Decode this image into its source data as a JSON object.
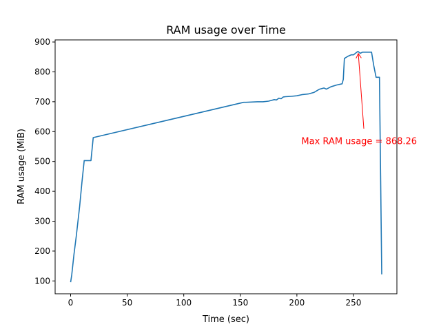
{
  "chart_data": {
    "type": "line",
    "title": "RAM usage over Time",
    "xlabel": "Time (sec)",
    "ylabel": "RAM usage (MiB)",
    "xlim": [
      -13.7,
      288.4
    ],
    "ylim": [
      57,
      907
    ],
    "xticks": [
      0,
      50,
      100,
      150,
      200,
      250
    ],
    "yticks": [
      100,
      200,
      300,
      400,
      500,
      600,
      700,
      800,
      900
    ],
    "grid": false,
    "legend": "none",
    "series": [
      {
        "color": "#1f77b4",
        "x": [
          0,
          1,
          3,
          5,
          8,
          10,
          12,
          15,
          18,
          20,
          153,
          155,
          160,
          165,
          170,
          175,
          180,
          182,
          184,
          186,
          188,
          190,
          195,
          200,
          205,
          210,
          215,
          220,
          224,
          226,
          228,
          230,
          235,
          240,
          241,
          242,
          245,
          248,
          250,
          253,
          254,
          256,
          258,
          262,
          266,
          268,
          270,
          272,
          273,
          275
        ],
        "values": [
          96,
          120,
          190,
          250,
          350,
          430,
          503,
          503,
          503,
          580,
          698,
          698,
          699,
          700,
          700,
          702,
          707,
          706,
          712,
          710,
          716,
          717,
          718,
          720,
          724,
          726,
          731,
          742,
          746,
          742,
          746,
          750,
          756,
          760,
          775,
          845,
          852,
          857,
          857,
          866,
          868.26,
          862,
          866,
          866,
          866,
          820,
          782,
          782,
          782,
          122
        ]
      }
    ],
    "annotation": {
      "text": "Max RAM usage = 868.26",
      "color": "#ff0000",
      "point": [
        254,
        868.26
      ],
      "text_anchor": [
        204,
        570
      ]
    }
  }
}
